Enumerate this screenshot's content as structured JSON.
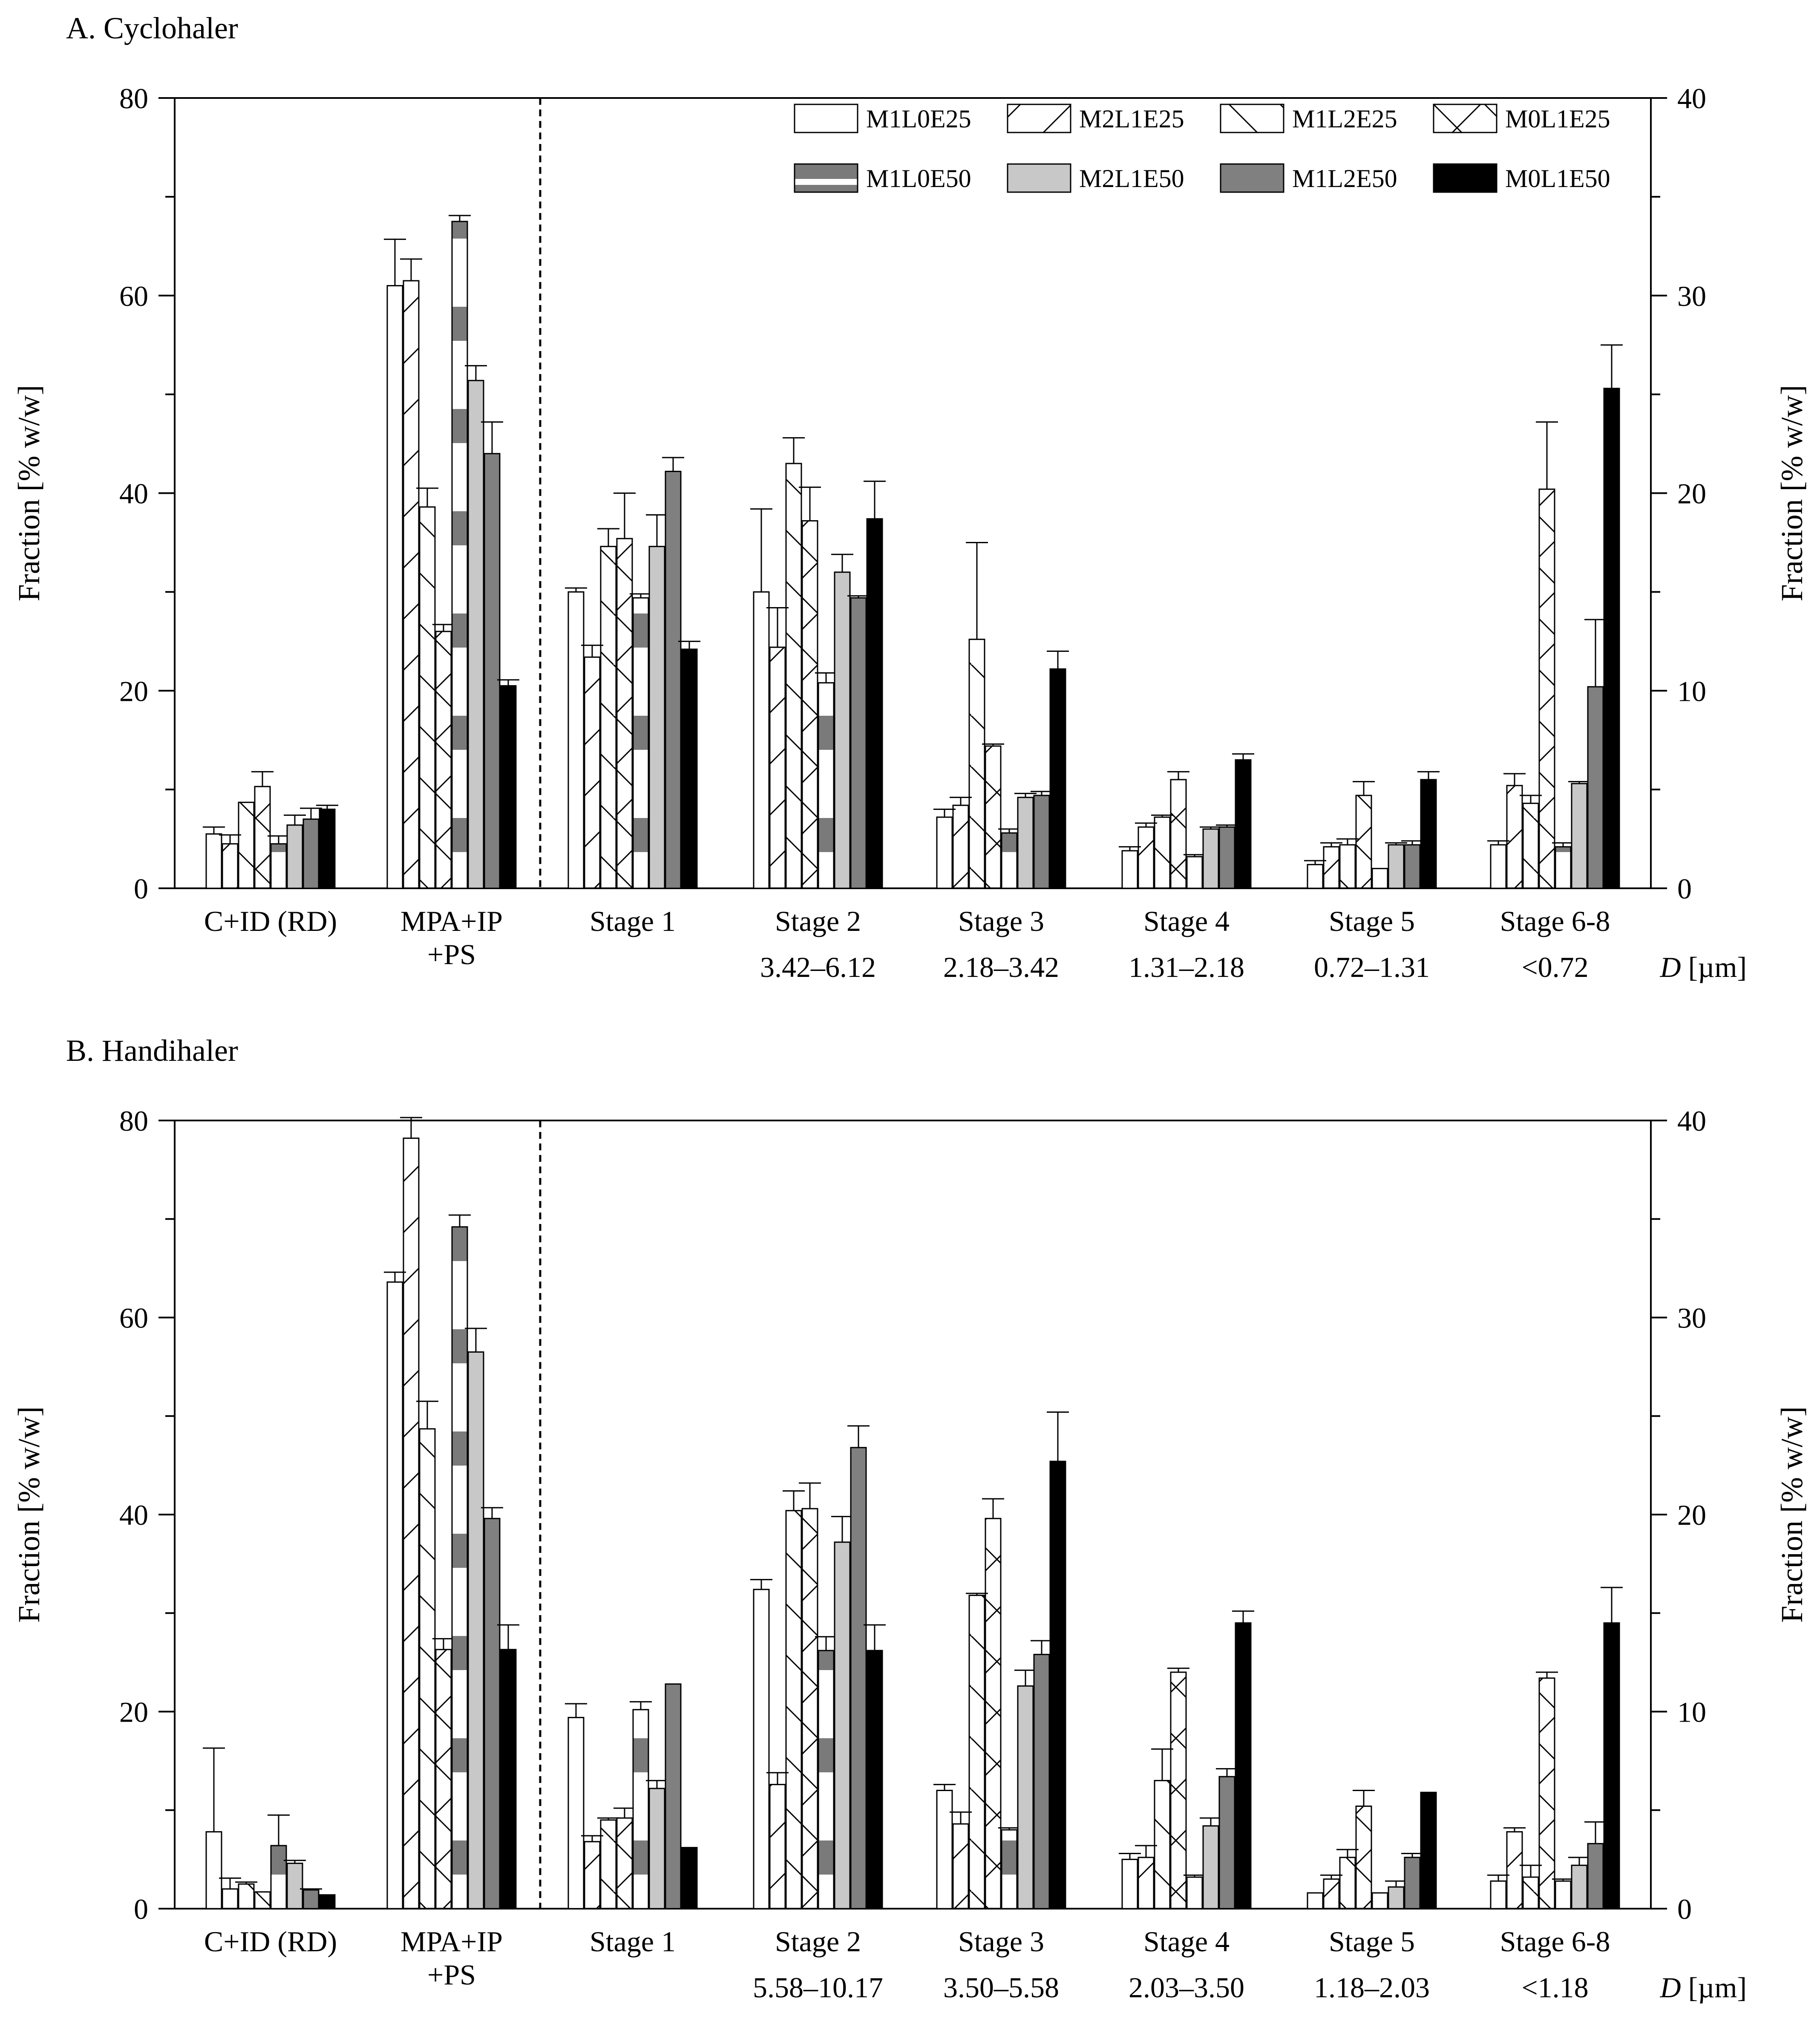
{
  "colors": {
    "M1L0E25": "#ffffff",
    "M2L1E25": "#ffffff",
    "M1L2E25": "#ffffff",
    "M0L1E25": "#ffffff",
    "M1L0E50": "#7a7a7a",
    "M2L1E50": "#c8c8c8",
    "M1L2E50": "#808080",
    "M0L1E50": "#000000"
  },
  "legend": [
    {
      "name": "M1L0E25",
      "fill": "open",
      "icon": "open-box"
    },
    {
      "name": "M2L1E25",
      "fill": "fwd",
      "icon": "forward-hatch-box"
    },
    {
      "name": "M1L2E25",
      "fill": "back",
      "icon": "backward-hatch-box"
    },
    {
      "name": "M0L1E25",
      "fill": "cross",
      "icon": "cross-hatch-box"
    },
    {
      "name": "M1L0E50",
      "fill": "banded",
      "icon": "banded-gray-box"
    },
    {
      "name": "M2L1E50",
      "fill": "light",
      "icon": "light-gray-box"
    },
    {
      "name": "M1L2E50",
      "fill": "dark",
      "icon": "dark-gray-box"
    },
    {
      "name": "M0L1E50",
      "fill": "black",
      "icon": "black-box"
    }
  ],
  "chart_data": [
    {
      "type": "bar",
      "panel_title": "A. Cyclohaler",
      "ylabel_left": "Fraction [% w/w]",
      "ylabel_right": "Fraction [% w/w]",
      "ylim_left": [
        0,
        80
      ],
      "ylim_right": [
        0,
        40
      ],
      "left_ticks": [
        "0",
        "20",
        "40",
        "60",
        "80"
      ],
      "right_ticks": [
        "0",
        "10",
        "20",
        "30",
        "40"
      ],
      "axis_break": "dashed line between MPA+IP+PS and Stage 1; left axis applies to C+ID (RD) and MPA+IP+PS, right axis applies to stages",
      "categories": [
        "C+ID (RD)",
        "MPA+IP\n+PS",
        "Stage 1",
        "Stage 2",
        "Stage 3",
        "Stage 4",
        "Stage 5",
        "Stage 6-8"
      ],
      "category_lines": [
        [
          "C+ID (RD)"
        ],
        [
          "MPA+IP",
          "+PS"
        ],
        [
          "Stage 1"
        ],
        [
          "Stage 2"
        ],
        [
          "Stage 3"
        ],
        [
          "Stage 4"
        ],
        [
          "Stage 5"
        ],
        [
          "Stage 6-8"
        ]
      ],
      "size_ranges": [
        "",
        "",
        "",
        "3.42–6.12",
        "2.18–3.42",
        "1.31–2.18",
        "0.72–1.31",
        "<0.72"
      ],
      "size_axis_label": "D [µm]",
      "series": [
        {
          "name": "M1L0E25",
          "values": [
            5.5,
            61,
            15,
            15,
            3.6,
            1.9,
            1.2,
            2.2
          ],
          "errors": [
            0.7,
            4.7,
            0.2,
            4.2,
            0.4,
            0.2,
            0.2,
            0.2
          ]
        },
        {
          "name": "M2L1E25",
          "values": [
            4.5,
            61.5,
            11.7,
            12.2,
            4.2,
            3.1,
            2.1,
            5.2
          ],
          "errors": [
            0.9,
            2.2,
            0.6,
            2.0,
            0.4,
            0.2,
            0.2,
            0.6
          ]
        },
        {
          "name": "M1L2E25",
          "values": [
            8.7,
            38.6,
            17.3,
            21.5,
            12.6,
            3.6,
            2.2,
            4.3
          ],
          "errors": [
            0,
            1.9,
            0.9,
            1.3,
            4.9,
            0.1,
            0.3,
            0.4
          ]
        },
        {
          "name": "M0L1E25",
          "values": [
            10.3,
            26,
            17.7,
            18.6,
            7.2,
            5.5,
            4.7,
            20.2
          ],
          "errors": [
            1.5,
            0.7,
            2.3,
            1.7,
            0.1,
            0.4,
            0.7,
            3.4
          ]
        },
        {
          "name": "M1L0E50",
          "values": [
            4.5,
            67.5,
            14.7,
            10.4,
            2.8,
            1.6,
            1,
            2.1
          ],
          "errors": [
            0.8,
            0.6,
            0.2,
            0.5,
            0.2,
            0.1,
            0,
            0.2
          ]
        },
        {
          "name": "M2L1E50",
          "values": [
            6.4,
            51.4,
            17.3,
            16,
            4.6,
            3.0,
            2.2,
            5.3
          ],
          "errors": [
            1.0,
            1.5,
            1.6,
            0.9,
            0.2,
            0.1,
            0.1,
            0.1
          ]
        },
        {
          "name": "M1L2E50",
          "values": [
            7,
            44,
            21.1,
            14.7,
            4.7,
            3.1,
            2.2,
            10.2
          ],
          "errors": [
            1.1,
            3.2,
            0.7,
            0.1,
            0.2,
            0.1,
            0.2,
            3.4
          ]
        },
        {
          "name": "M0L1E50",
          "values": [
            8,
            20.5,
            12.1,
            18.7,
            11.1,
            6.5,
            5.5,
            25.3
          ],
          "errors": [
            0.4,
            0.6,
            0.4,
            1.9,
            0.9,
            0.3,
            0.4,
            2.2
          ]
        }
      ]
    },
    {
      "type": "bar",
      "panel_title": "B. Handihaler",
      "ylabel_left": "Fraction [% w/w]",
      "ylabel_right": "Fraction [% w/w]",
      "ylim_left": [
        0,
        80
      ],
      "ylim_right": [
        0,
        40
      ],
      "left_ticks": [
        "0",
        "20",
        "40",
        "60",
        "80"
      ],
      "right_ticks": [
        "0",
        "10",
        "20",
        "30",
        "40"
      ],
      "axis_break": "dashed line between MPA+IP+PS and Stage 1; left axis applies to C+ID (RD) and MPA+IP+PS, right axis applies to stages",
      "categories": [
        "C+ID (RD)",
        "MPA+IP\n+PS",
        "Stage 1",
        "Stage 2",
        "Stage 3",
        "Stage 4",
        "Stage 5",
        "Stage 6-8"
      ],
      "category_lines": [
        [
          "C+ID (RD)"
        ],
        [
          "MPA+IP",
          "+PS"
        ],
        [
          "Stage 1"
        ],
        [
          "Stage 2"
        ],
        [
          "Stage 3"
        ],
        [
          "Stage 4"
        ],
        [
          "Stage 5"
        ],
        [
          "Stage 6-8"
        ]
      ],
      "size_ranges": [
        "",
        "",
        "",
        "5.58–10.17",
        "3.50–5.58",
        "2.03–3.50",
        "1.18–2.03",
        "<1.18"
      ],
      "size_axis_label": "D [µm]",
      "series": [
        {
          "name": "M1L0E25",
          "values": [
            7.8,
            63.6,
            9.7,
            16.2,
            6.0,
            2.5,
            0.8,
            1.4
          ],
          "errors": [
            8.5,
            1.0,
            0.7,
            0.5,
            0.3,
            0.3,
            0,
            0.3
          ]
        },
        {
          "name": "M2L1E25",
          "values": [
            2.0,
            78.2,
            3.4,
            6.3,
            4.3,
            2.6,
            1.5,
            3.9
          ],
          "errors": [
            1.1,
            2.1,
            0.3,
            0.6,
            0.6,
            0.6,
            0.2,
            0.2
          ]
        },
        {
          "name": "M1L2E25",
          "values": [
            2.5,
            48.7,
            4.5,
            20.2,
            15.9,
            6.5,
            2.6,
            1.6
          ],
          "errors": [
            0.2,
            2.8,
            0.1,
            1.0,
            0.1,
            1.6,
            0.4,
            0.6
          ]
        },
        {
          "name": "M0L1E25",
          "values": [
            1.7,
            26.3,
            4.6,
            20.3,
            19.8,
            12.0,
            5.2,
            11.7
          ],
          "errors": [
            0,
            1.1,
            0.5,
            1.3,
            1.0,
            0.2,
            0.8,
            0.3
          ]
        },
        {
          "name": "M1L0E50",
          "values": [
            6.4,
            69.2,
            10.1,
            13.1,
            4.0,
            1.6,
            0.8,
            1.4
          ],
          "errors": [
            3.1,
            1.2,
            0.4,
            0.7,
            0.1,
            0.1,
            0,
            0.1
          ]
        },
        {
          "name": "M2L1E50",
          "values": [
            4.6,
            56.5,
            6.1,
            18.6,
            11.3,
            4.2,
            1.1,
            2.2
          ],
          "errors": [
            0.3,
            2.4,
            0.4,
            1.3,
            0.8,
            0.4,
            0.3,
            0.4
          ]
        },
        {
          "name": "M1L2E50",
          "values": [
            1.9,
            39.6,
            11.4,
            23.4,
            12.9,
            6.7,
            2.6,
            3.3
          ],
          "errors": [
            0.1,
            1.1,
            0,
            1.1,
            0.7,
            0.4,
            0.2,
            1.1
          ]
        },
        {
          "name": "M0L1E50",
          "values": [
            1.4,
            26.3,
            3.1,
            13.1,
            22.7,
            14.5,
            5.9,
            14.5
          ],
          "errors": [
            0,
            2.5,
            0,
            1.3,
            2.5,
            0.6,
            0,
            1.8
          ]
        }
      ]
    }
  ]
}
